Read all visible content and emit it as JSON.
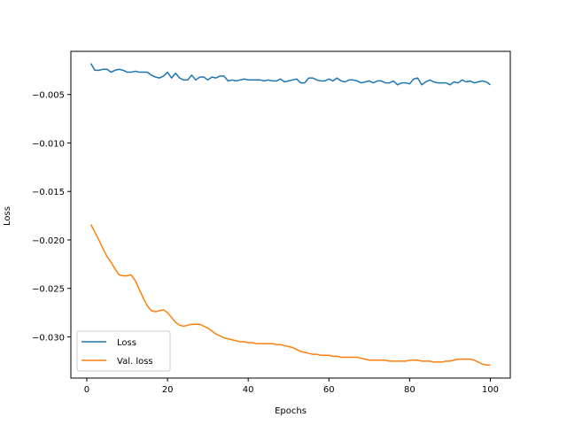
{
  "chart_data": {
    "type": "line",
    "title": "",
    "xlabel": "Epochs",
    "ylabel": "Loss",
    "xlim": [
      -3.95,
      104.95
    ],
    "ylim": [
      -0.03425,
      -0.00055
    ],
    "xticks": [
      0,
      20,
      40,
      60,
      80,
      100
    ],
    "xtick_labels": [
      "0",
      "20",
      "40",
      "60",
      "80",
      "100"
    ],
    "yticks": [
      -0.005,
      -0.01,
      -0.015,
      -0.02,
      -0.025,
      -0.03
    ],
    "ytick_labels": [
      "−0.005",
      "−0.010",
      "−0.015",
      "−0.020",
      "−0.025",
      "−0.030"
    ],
    "grid": false,
    "legend_position": "lower-left",
    "x": [
      1,
      2,
      3,
      4,
      5,
      6,
      7,
      8,
      9,
      10,
      11,
      12,
      13,
      14,
      15,
      16,
      17,
      18,
      19,
      20,
      21,
      22,
      23,
      24,
      25,
      26,
      27,
      28,
      29,
      30,
      31,
      32,
      33,
      34,
      35,
      36,
      37,
      38,
      39,
      40,
      41,
      42,
      43,
      44,
      45,
      46,
      47,
      48,
      49,
      50,
      51,
      52,
      53,
      54,
      55,
      56,
      57,
      58,
      59,
      60,
      61,
      62,
      63,
      64,
      65,
      66,
      67,
      68,
      69,
      70,
      71,
      72,
      73,
      74,
      75,
      76,
      77,
      78,
      79,
      80,
      81,
      82,
      83,
      84,
      85,
      86,
      87,
      88,
      89,
      90,
      91,
      92,
      93,
      94,
      95,
      96,
      97,
      98,
      99,
      100
    ],
    "series": [
      {
        "name": "Loss",
        "color": "#1f77b4",
        "values": [
          -0.0018,
          -0.0025,
          -0.0025,
          -0.0024,
          -0.0024,
          -0.0027,
          -0.0025,
          -0.0024,
          -0.0025,
          -0.0027,
          -0.0027,
          -0.0026,
          -0.0027,
          -0.0027,
          -0.0027,
          -0.003,
          -0.0032,
          -0.0033,
          -0.0031,
          -0.0027,
          -0.0033,
          -0.0028,
          -0.0033,
          -0.0035,
          -0.0035,
          -0.003,
          -0.0035,
          -0.0032,
          -0.0032,
          -0.0035,
          -0.0032,
          -0.0033,
          -0.0031,
          -0.0031,
          -0.0036,
          -0.0035,
          -0.0036,
          -0.0035,
          -0.0034,
          -0.0035,
          -0.0035,
          -0.0035,
          -0.0035,
          -0.0036,
          -0.0035,
          -0.0036,
          -0.0036,
          -0.0034,
          -0.0037,
          -0.0036,
          -0.0035,
          -0.0034,
          -0.0038,
          -0.0038,
          -0.0033,
          -0.0033,
          -0.0035,
          -0.0036,
          -0.0036,
          -0.0034,
          -0.0036,
          -0.0033,
          -0.0036,
          -0.0037,
          -0.0035,
          -0.0035,
          -0.0036,
          -0.0038,
          -0.0037,
          -0.0036,
          -0.0038,
          -0.0036,
          -0.0036,
          -0.0038,
          -0.0038,
          -0.0036,
          -0.004,
          -0.0038,
          -0.0038,
          -0.0039,
          -0.0034,
          -0.0033,
          -0.004,
          -0.0037,
          -0.0035,
          -0.0037,
          -0.0038,
          -0.0038,
          -0.0038,
          -0.004,
          -0.0037,
          -0.0038,
          -0.0035,
          -0.0037,
          -0.0036,
          -0.0038,
          -0.0037,
          -0.0036,
          -0.0037,
          -0.004
        ]
      },
      {
        "name": "Val. loss",
        "color": "#ff7f0e",
        "values": [
          -0.0184,
          -0.0192,
          -0.02,
          -0.0209,
          -0.0217,
          -0.0223,
          -0.023,
          -0.0236,
          -0.0237,
          -0.0237,
          -0.0236,
          -0.0242,
          -0.0251,
          -0.026,
          -0.0268,
          -0.0273,
          -0.0274,
          -0.0273,
          -0.0272,
          -0.0275,
          -0.028,
          -0.0285,
          -0.0288,
          -0.0289,
          -0.0288,
          -0.0287,
          -0.0287,
          -0.0287,
          -0.0289,
          -0.0291,
          -0.0294,
          -0.0297,
          -0.0299,
          -0.0301,
          -0.0302,
          -0.0303,
          -0.0304,
          -0.0305,
          -0.0305,
          -0.0306,
          -0.0306,
          -0.0307,
          -0.0307,
          -0.0307,
          -0.0307,
          -0.0307,
          -0.0308,
          -0.0308,
          -0.0309,
          -0.031,
          -0.0311,
          -0.0313,
          -0.0315,
          -0.0316,
          -0.0317,
          -0.0318,
          -0.0318,
          -0.0319,
          -0.0319,
          -0.0319,
          -0.032,
          -0.032,
          -0.0321,
          -0.0321,
          -0.0321,
          -0.0321,
          -0.0321,
          -0.0322,
          -0.0323,
          -0.0324,
          -0.0324,
          -0.0324,
          -0.0324,
          -0.0324,
          -0.0325,
          -0.0325,
          -0.0325,
          -0.0325,
          -0.0325,
          -0.0324,
          -0.0324,
          -0.0324,
          -0.0325,
          -0.0325,
          -0.0325,
          -0.0326,
          -0.0326,
          -0.0326,
          -0.0325,
          -0.0325,
          -0.0324,
          -0.0323,
          -0.0323,
          -0.0323,
          -0.0323,
          -0.0324,
          -0.0326,
          -0.0328,
          -0.0329,
          -0.0329
        ]
      }
    ]
  }
}
